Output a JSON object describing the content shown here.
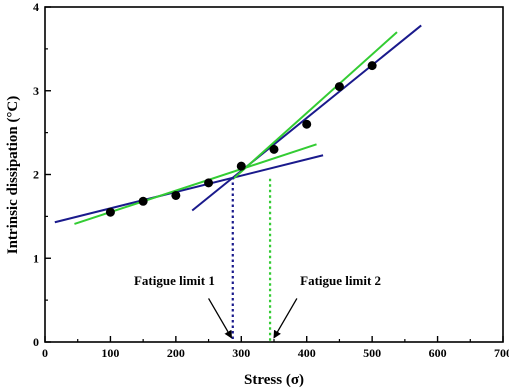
{
  "chart_data": {
    "type": "scatter",
    "title": "",
    "xlabel": "Stress (σ)",
    "ylabel": "Intrinsic dissipation (°C)",
    "xlim": [
      0,
      700
    ],
    "ylim": [
      0,
      4
    ],
    "x_ticks": [
      "0",
      "100",
      "200",
      "300",
      "400",
      "500",
      "600",
      "700"
    ],
    "y_ticks": [
      "0",
      "1",
      "2",
      "3",
      "4"
    ],
    "grid": false,
    "points": [
      {
        "x": 100,
        "y": 1.55
      },
      {
        "x": 150,
        "y": 1.68
      },
      {
        "x": 200,
        "y": 1.75
      },
      {
        "x": 250,
        "y": 1.9
      },
      {
        "x": 300,
        "y": 2.1
      },
      {
        "x": 350,
        "y": 2.3
      },
      {
        "x": 400,
        "y": 2.6
      },
      {
        "x": 450,
        "y": 3.05
      },
      {
        "x": 500,
        "y": 3.3
      }
    ],
    "fit_lines": [
      {
        "color": "#1a1a8c",
        "from": [
          15,
          1.43
        ],
        "to": [
          425,
          2.23
        ]
      },
      {
        "color": "#1a1a8c",
        "from": [
          225,
          1.57
        ],
        "to": [
          575,
          3.78
        ]
      },
      {
        "color": "#33cc33",
        "from": [
          45,
          1.41
        ],
        "to": [
          415,
          2.36
        ]
      },
      {
        "color": "#33cc33",
        "from": [
          288,
          1.95
        ],
        "to": [
          538,
          3.7
        ]
      }
    ],
    "limits": [
      {
        "x": 287,
        "y_top": 1.97,
        "color": "#1a1a8c"
      },
      {
        "x": 344,
        "y_top": 1.95,
        "color": "#33cc33"
      }
    ],
    "annotations": [
      {
        "text": "Fatigue limit 1",
        "text_x": 136,
        "text_y": 0.68,
        "arrow_from": [
          250,
          0.52
        ],
        "arrow_to": [
          285,
          0.05
        ]
      },
      {
        "text": "Fatigue limit 2",
        "text_x": 390,
        "text_y": 0.68,
        "arrow_from": [
          385,
          0.52
        ],
        "arrow_to": [
          350,
          0.05
        ]
      }
    ]
  }
}
